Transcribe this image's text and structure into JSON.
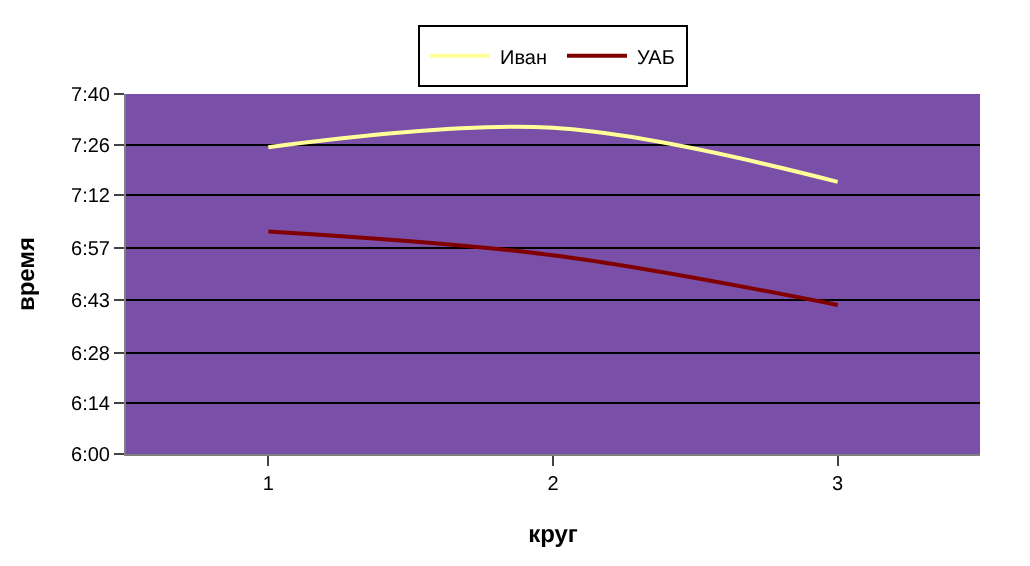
{
  "chart_data": {
    "type": "line",
    "xlabel": "круг",
    "ylabel": "время",
    "categories": [
      "1",
      "2",
      "3"
    ],
    "series": [
      {
        "name": "Иван",
        "color": "#ffff99",
        "values": [
          7.42,
          7.51,
          7.26
        ]
      },
      {
        "name": "УАБ",
        "color": "#800000",
        "values": [
          7.03,
          6.92,
          6.69
        ]
      }
    ],
    "ylim": [
      6.0,
      7.6667
    ],
    "yticks": [
      {
        "value": 6.0,
        "label": "6:00"
      },
      {
        "value": 6.2381,
        "label": "6:14"
      },
      {
        "value": 6.4667,
        "label": "6:28"
      },
      {
        "value": 6.7143,
        "label": "6:43"
      },
      {
        "value": 6.9524,
        "label": "6:57"
      },
      {
        "value": 7.2,
        "label": "7:12"
      },
      {
        "value": 7.4286,
        "label": "7:26"
      },
      {
        "value": 7.6667,
        "label": "7:40"
      }
    ],
    "grid": "y",
    "legend": "top",
    "marker": "none",
    "line_style": "solid"
  }
}
